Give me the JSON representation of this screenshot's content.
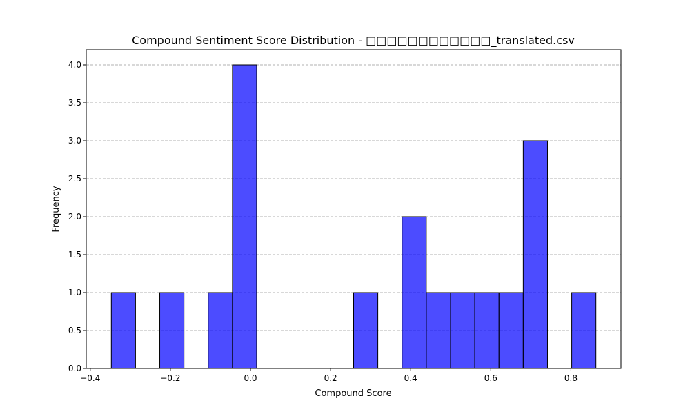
{
  "chart_data": {
    "type": "bar",
    "title": "Compound Sentiment Score Distribution - □□□□□□□□□□□□_translated.csv",
    "xlabel": "Compound Score",
    "ylabel": "Frequency",
    "xlim": [
      -0.41,
      0.925
    ],
    "ylim": [
      0,
      4.2
    ],
    "xticks": [
      "−0.4",
      "−0.2",
      "0.0",
      "0.2",
      "0.4",
      "0.6",
      "0.8"
    ],
    "xtick_values": [
      -0.4,
      -0.2,
      0.0,
      0.2,
      0.4,
      0.6,
      0.8
    ],
    "yticks": [
      "0.0",
      "0.5",
      "1.0",
      "1.5",
      "2.0",
      "2.5",
      "3.0",
      "3.5",
      "4.0"
    ],
    "ytick_values": [
      0,
      0.5,
      1.0,
      1.5,
      2.0,
      2.5,
      3.0,
      3.5,
      4.0
    ],
    "grid": {
      "axis": "y",
      "style": "dashed"
    },
    "bar_color": "#0000ff",
    "bar_opacity": 0.7,
    "edge_color": "#000000",
    "bins": [
      {
        "start": -0.3475,
        "end": -0.287,
        "count": 1
      },
      {
        "start": -0.2265,
        "end": -0.166,
        "count": 1
      },
      {
        "start": -0.1055,
        "end": -0.045,
        "count": 1
      },
      {
        "start": -0.045,
        "end": 0.0155,
        "count": 4
      },
      {
        "start": 0.2575,
        "end": 0.318,
        "count": 1
      },
      {
        "start": 0.3785,
        "end": 0.439,
        "count": 2
      },
      {
        "start": 0.439,
        "end": 0.4995,
        "count": 1
      },
      {
        "start": 0.4995,
        "end": 0.56,
        "count": 1
      },
      {
        "start": 0.56,
        "end": 0.6205,
        "count": 1
      },
      {
        "start": 0.6205,
        "end": 0.681,
        "count": 1
      },
      {
        "start": 0.681,
        "end": 0.7415,
        "count": 3
      },
      {
        "start": 0.802,
        "end": 0.8625,
        "count": 1
      }
    ]
  }
}
